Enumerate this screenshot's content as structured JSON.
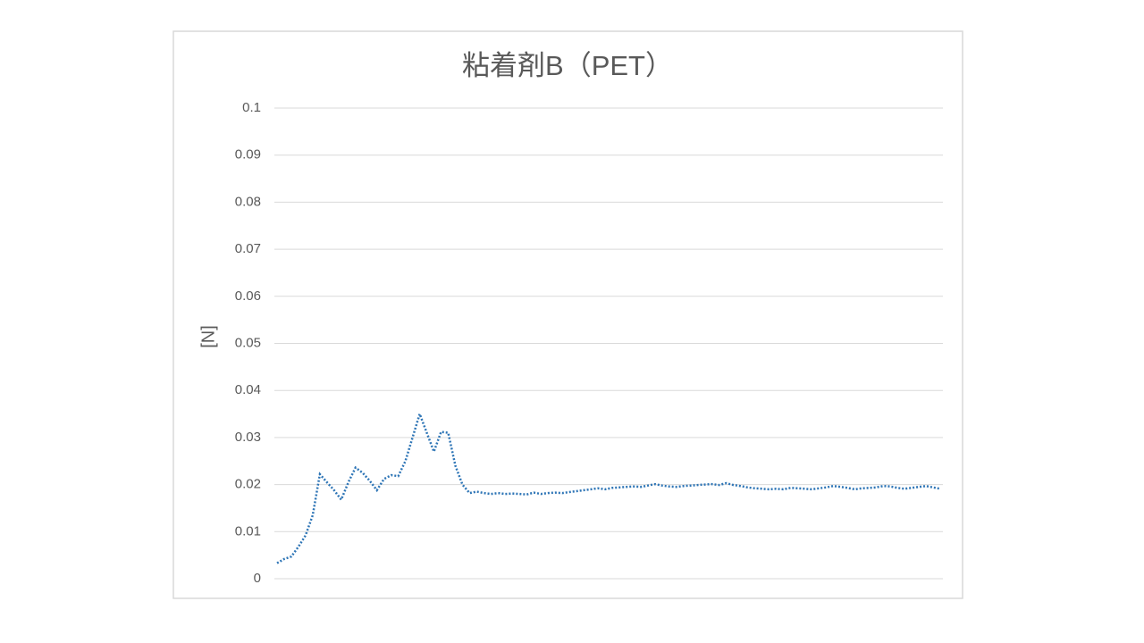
{
  "chart_data": {
    "type": "line",
    "title": "粘着剤B（PET）",
    "y_label": "[N]",
    "categories": [
      null,
      null,
      null,
      null,
      null,
      null,
      null,
      null,
      null,
      null,
      null,
      null,
      null,
      null,
      null,
      null,
      null,
      null,
      null,
      null,
      null,
      null,
      null,
      null,
      null,
      null,
      null,
      null,
      null,
      null,
      null,
      null,
      null,
      null,
      null,
      null,
      null,
      null,
      null,
      null,
      null,
      null,
      null,
      null,
      null,
      null,
      null,
      null,
      null,
      null,
      null,
      null,
      null,
      null,
      null,
      null,
      null,
      null,
      null,
      null,
      null,
      null,
      null,
      null,
      null,
      null,
      null,
      null,
      null,
      null,
      null,
      null,
      null,
      null,
      null,
      null,
      null,
      null,
      null,
      null,
      null,
      null,
      null,
      null,
      null,
      null,
      null,
      null,
      null,
      null,
      null,
      null,
      null,
      null
    ],
    "series": [
      {
        "color": "#2e75b6",
        "values": [
          0.0033,
          0.0042,
          0.0047,
          0.0068,
          0.0092,
          0.0135,
          0.0222,
          0.0205,
          0.0188,
          0.0168,
          0.0205,
          0.0236,
          0.0225,
          0.0208,
          0.0188,
          0.0212,
          0.022,
          0.0218,
          0.025,
          0.03,
          0.035,
          0.031,
          0.027,
          0.0312,
          0.031,
          0.024,
          0.02,
          0.0182,
          0.0185,
          0.0182,
          0.018,
          0.0182,
          0.018,
          0.0181,
          0.018,
          0.0179,
          0.0183,
          0.018,
          0.0182,
          0.0183,
          0.0182,
          0.0184,
          0.0186,
          0.0188,
          0.019,
          0.0192,
          0.019,
          0.0193,
          0.0194,
          0.0195,
          0.0196,
          0.0195,
          0.0198,
          0.0201,
          0.0198,
          0.0196,
          0.0195,
          0.0197,
          0.0198,
          0.0199,
          0.02,
          0.0201,
          0.0199,
          0.0203,
          0.0199,
          0.0197,
          0.0194,
          0.0192,
          0.0191,
          0.019,
          0.0191,
          0.019,
          0.0193,
          0.0192,
          0.0191,
          0.019,
          0.0192,
          0.0194,
          0.0197,
          0.0195,
          0.0193,
          0.019,
          0.0192,
          0.0193,
          0.0194,
          0.0197,
          0.0196,
          0.0193,
          0.0191,
          0.0193,
          0.0195,
          0.0197,
          0.0194,
          0.0191
        ]
      }
    ],
    "ylim": [
      0,
      0.1
    ],
    "yticks": [
      0,
      0.01,
      0.02,
      0.03,
      0.04,
      0.05,
      0.06,
      0.07,
      0.08,
      0.09,
      0.1
    ],
    "grid": true
  }
}
